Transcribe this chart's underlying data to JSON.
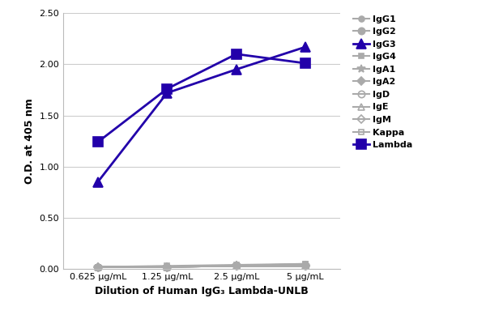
{
  "x_labels": [
    "0.625 μg/mL",
    "1.25 μg/mL",
    "2.5 μg/mL",
    "5 μg/mL"
  ],
  "x_values": [
    1,
    2,
    3,
    4
  ],
  "series": {
    "IgG1": {
      "values": [
        0.02,
        0.02,
        0.03,
        0.03
      ],
      "color": "#aaaaaa",
      "marker": "o",
      "marker_size": 5,
      "linewidth": 1.5,
      "mfc": "#aaaaaa",
      "zorder": 2
    },
    "IgG2": {
      "values": [
        0.02,
        0.02,
        0.03,
        0.03
      ],
      "color": "#aaaaaa",
      "marker": "o",
      "marker_size": 6,
      "linewidth": 1.5,
      "mfc": "#aaaaaa",
      "zorder": 2
    },
    "IgG3": {
      "values": [
        0.85,
        1.72,
        1.95,
        2.17
      ],
      "color": "#2200aa",
      "marker": "^",
      "marker_size": 8,
      "linewidth": 2.0,
      "mfc": "#2200aa",
      "zorder": 5
    },
    "IgG4": {
      "values": [
        0.02,
        0.03,
        0.04,
        0.05
      ],
      "color": "#aaaaaa",
      "marker": "s",
      "marker_size": 5,
      "linewidth": 1.5,
      "mfc": "#aaaaaa",
      "zorder": 2
    },
    "IgA1": {
      "values": [
        0.02,
        0.02,
        0.03,
        0.03
      ],
      "color": "#aaaaaa",
      "marker": "*",
      "marker_size": 7,
      "linewidth": 1.5,
      "mfc": "#aaaaaa",
      "zorder": 2
    },
    "IgA2": {
      "values": [
        0.02,
        0.02,
        0.03,
        0.03
      ],
      "color": "#aaaaaa",
      "marker": "D",
      "marker_size": 5,
      "linewidth": 1.5,
      "mfc": "#aaaaaa",
      "zorder": 2
    },
    "IgD": {
      "values": [
        0.02,
        0.02,
        0.03,
        0.03
      ],
      "color": "#aaaaaa",
      "marker": "o",
      "marker_size": 6,
      "linewidth": 1.5,
      "mfc": "none",
      "zorder": 2
    },
    "IgE": {
      "values": [
        0.02,
        0.02,
        0.03,
        0.03
      ],
      "color": "#aaaaaa",
      "marker": "^",
      "marker_size": 6,
      "linewidth": 1.5,
      "mfc": "none",
      "zorder": 2
    },
    "IgM": {
      "values": [
        0.02,
        0.02,
        0.03,
        0.03
      ],
      "color": "#aaaaaa",
      "marker": "D",
      "marker_size": 5,
      "linewidth": 1.5,
      "mfc": "none",
      "zorder": 2
    },
    "Kappa": {
      "values": [
        0.02,
        0.02,
        0.03,
        0.05
      ],
      "color": "#aaaaaa",
      "marker": "s",
      "marker_size": 5,
      "linewidth": 1.5,
      "mfc": "none",
      "zorder": 2
    },
    "Lambda": {
      "values": [
        1.24,
        1.76,
        2.1,
        2.01
      ],
      "color": "#2200aa",
      "marker": "s",
      "marker_size": 8,
      "linewidth": 2.0,
      "mfc": "#2200aa",
      "zorder": 5
    }
  },
  "ylabel": "O.D. at 405 nm",
  "xlabel": "Dilution of Human IgG₃ Lambda-UNLB",
  "ylim": [
    0.0,
    2.5
  ],
  "yticks": [
    0.0,
    0.5,
    1.0,
    1.5,
    2.0,
    2.5
  ],
  "background_color": "#ffffff",
  "grid_color": "#cccccc",
  "label_fontsize": 9,
  "tick_fontsize": 8,
  "legend_fontsize": 8
}
